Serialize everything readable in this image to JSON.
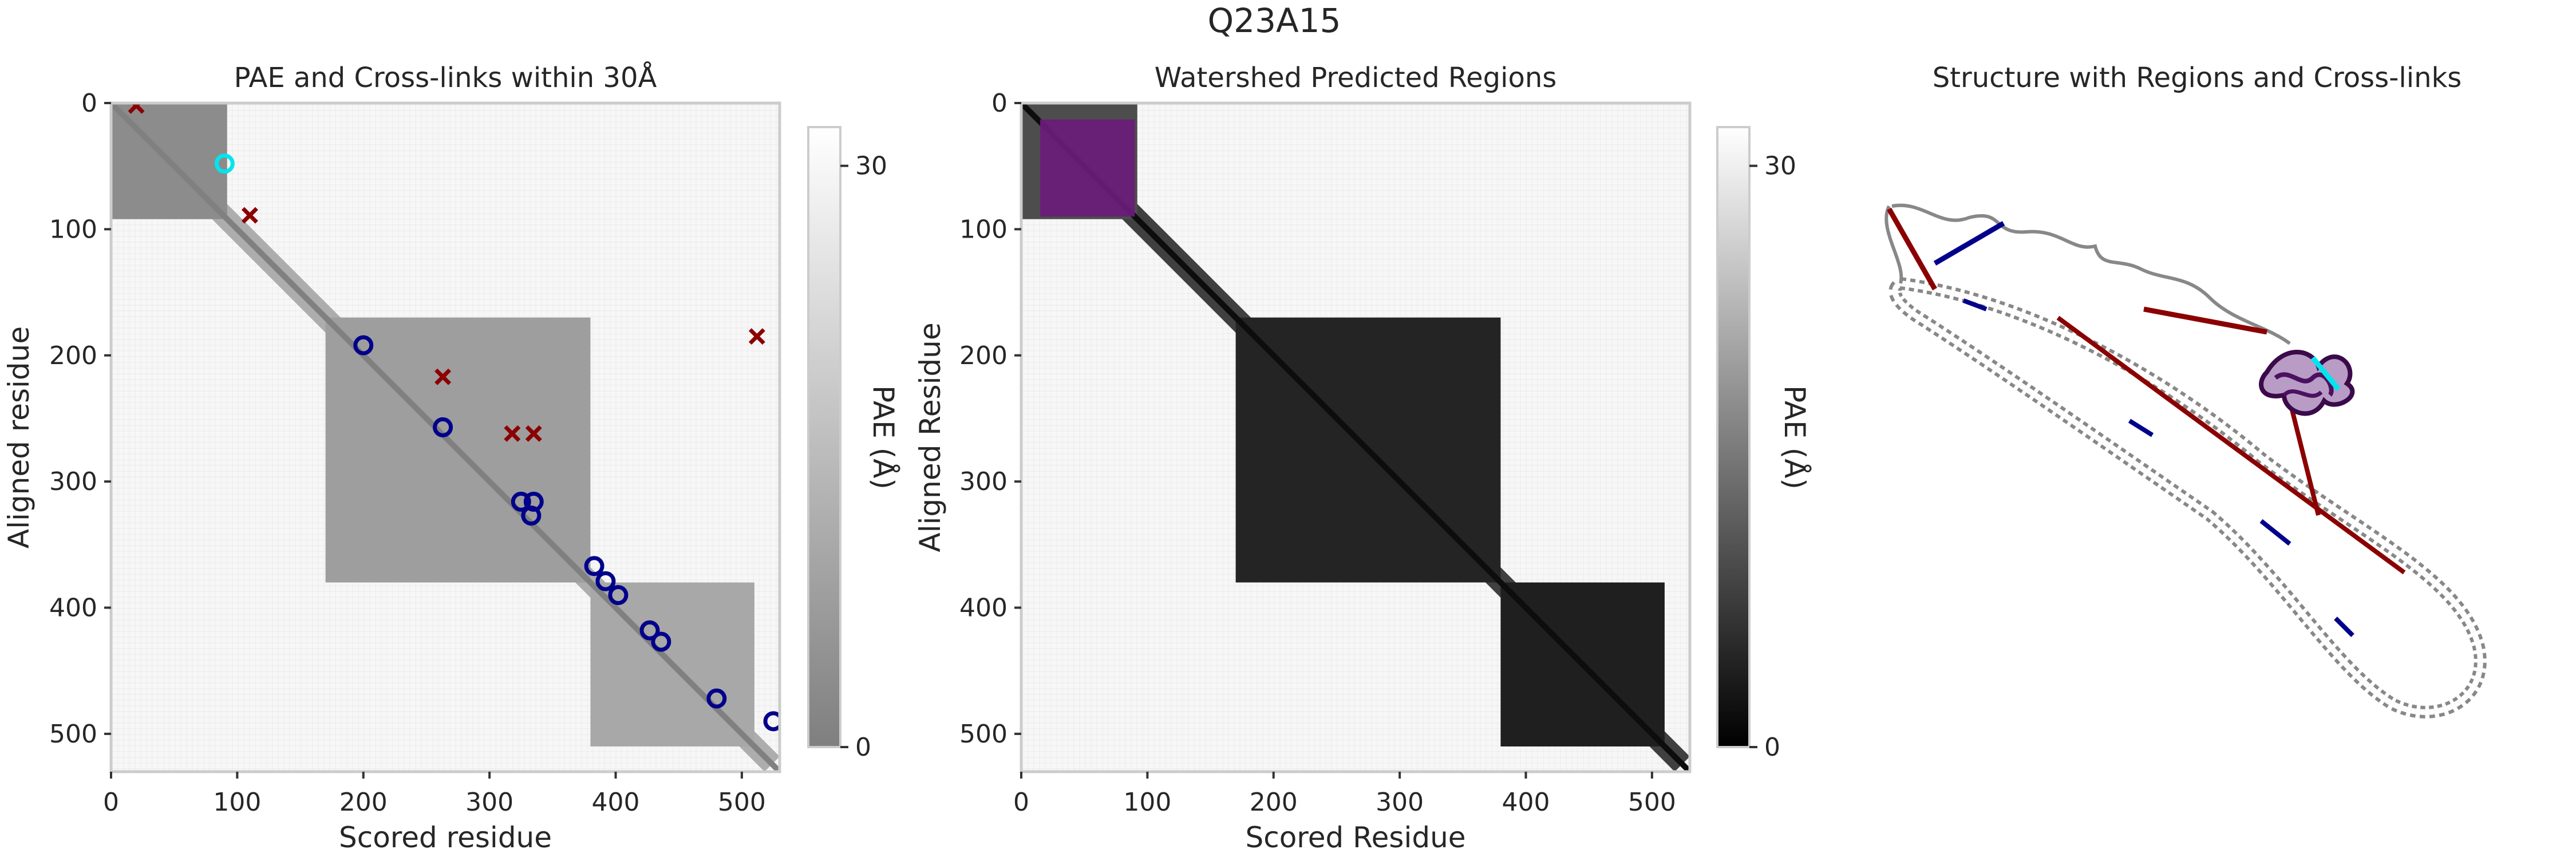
{
  "suptitle": "Q23A15",
  "panels": {
    "pae": {
      "title": "PAE and Cross-links within 30Å",
      "xlabel": "Scored residue",
      "ylabel": "Aligned residue",
      "colorbar_label": "PAE (Å)"
    },
    "watershed": {
      "title": "Watershed Predicted Regions",
      "xlabel": "Scored Residue",
      "ylabel": "Aligned Residue",
      "colorbar_label": "PAE (Å)"
    },
    "structure": {
      "title": "Structure with Regions and Cross-links"
    }
  },
  "chart_data": [
    {
      "type": "heatmap",
      "title": "PAE and Cross-links within 30Å",
      "xlabel": "Scored residue",
      "ylabel": "Aligned residue",
      "xlim": [
        0,
        530
      ],
      "ylim": [
        530,
        0
      ],
      "xticks": [
        0,
        100,
        200,
        300,
        400,
        500
      ],
      "yticks": [
        0,
        100,
        200,
        300,
        400,
        500
      ],
      "colorbar": {
        "label": "PAE (Å)",
        "range": [
          0,
          32
        ],
        "ticks": [
          0,
          30
        ],
        "colormap": "gray"
      },
      "domains": [
        {
          "start": 0,
          "end": 92,
          "level": 0.55
        },
        {
          "start": 170,
          "end": 380,
          "level": 0.62
        },
        {
          "start": 380,
          "end": 510,
          "level": 0.66
        }
      ],
      "crosslinks_within_30A": [
        {
          "x": 200,
          "y": 192
        },
        {
          "x": 263,
          "y": 257
        },
        {
          "x": 325,
          "y": 316
        },
        {
          "x": 335,
          "y": 316
        },
        {
          "x": 333,
          "y": 327
        },
        {
          "x": 383,
          "y": 367
        },
        {
          "x": 392,
          "y": 379
        },
        {
          "x": 402,
          "y": 390
        },
        {
          "x": 427,
          "y": 418
        },
        {
          "x": 436,
          "y": 427
        },
        {
          "x": 480,
          "y": 472
        },
        {
          "x": 525,
          "y": 490
        }
      ],
      "crosslinks_highlight": [
        {
          "x": 90,
          "y": 48
        }
      ],
      "crosslinks_beyond_30A": [
        {
          "x": 20,
          "y": 2
        },
        {
          "x": 110,
          "y": 89
        },
        {
          "x": 263,
          "y": 217
        },
        {
          "x": 318,
          "y": 262
        },
        {
          "x": 335,
          "y": 262
        },
        {
          "x": 512,
          "y": 185
        }
      ],
      "colors": {
        "within": "#00008b",
        "highlight": "#00e5ee",
        "beyond": "#8b0000"
      }
    },
    {
      "type": "heatmap",
      "title": "Watershed Predicted Regions",
      "xlabel": "Scored Residue",
      "ylabel": "Aligned Residue",
      "xlim": [
        0,
        530
      ],
      "ylim": [
        530,
        0
      ],
      "xticks": [
        0,
        100,
        200,
        300,
        400,
        500
      ],
      "yticks": [
        0,
        100,
        200,
        300,
        400,
        500
      ],
      "colorbar": {
        "label": "PAE (Å)",
        "range": [
          0,
          32
        ],
        "ticks": [
          0,
          30
        ],
        "colormap": "gray"
      },
      "domains": [
        {
          "start": 0,
          "end": 92,
          "level": 0.3
        },
        {
          "start": 170,
          "end": 380,
          "level": 0.14
        },
        {
          "start": 380,
          "end": 510,
          "level": 0.12
        }
      ],
      "regions": [
        {
          "start": 15,
          "end": 90,
          "color": "#6a1b7a"
        }
      ]
    }
  ]
}
